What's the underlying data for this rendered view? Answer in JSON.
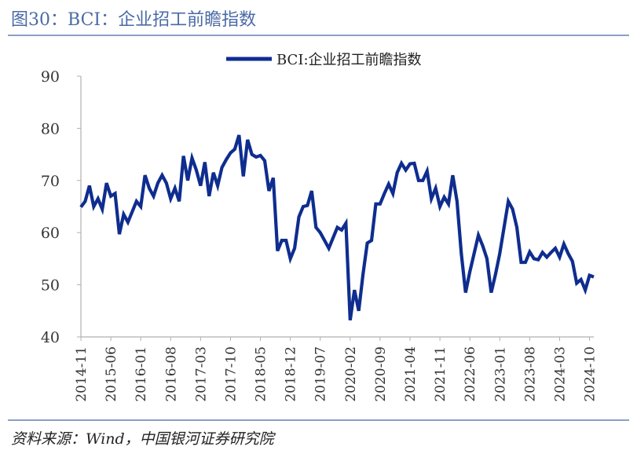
{
  "figure": {
    "title": "图30：BCI：企业招工前瞻指数",
    "source": "资料来源：Wind，中国银河证券研究院"
  },
  "colors": {
    "line": "#0f2d8f",
    "rule": "#8a9fc6",
    "title": "#4a6aa5",
    "axis": "#b0b0b0"
  },
  "chart_data": {
    "type": "line",
    "title": "",
    "xlabel": "",
    "ylabel": "",
    "ylim": [
      40,
      90
    ],
    "yticks": [
      40,
      50,
      60,
      70,
      80,
      90
    ],
    "grid": false,
    "legend_position": "top-center",
    "start_month": "2014-11",
    "x_tick_labels": [
      "2014-11",
      "2015-06",
      "2016-01",
      "2016-08",
      "2017-03",
      "2017-10",
      "2018-05",
      "2018-12",
      "2019-07",
      "2020-02",
      "2020-09",
      "2021-04",
      "2021-11",
      "2022-06",
      "2023-01",
      "2023-08",
      "2024-03",
      "2024-10"
    ],
    "series": [
      {
        "name": "BCI:企业招工前瞻指数",
        "values": [
          64.9,
          66.0,
          69.0,
          65.0,
          66.5,
          64.5,
          69.5,
          67.0,
          67.5,
          59.7,
          63.5,
          62.0,
          64.0,
          66.0,
          65.0,
          71.0,
          68.5,
          67.0,
          69.5,
          71.0,
          69.5,
          66.5,
          68.5,
          66.0,
          74.7,
          70.0,
          74.3,
          72.0,
          69.0,
          73.5,
          67.0,
          71.5,
          69.0,
          72.5,
          74.0,
          75.3,
          76.0,
          78.7,
          70.8,
          77.8,
          75.0,
          74.5,
          74.8,
          73.8,
          68.0,
          70.5,
          56.5,
          58.5,
          58.5,
          55.0,
          57.0,
          63.0,
          65.0,
          65.2,
          68.0,
          61.0,
          60.0,
          58.5,
          57.0,
          59.0,
          61.0,
          60.5,
          61.8,
          43.2,
          49.0,
          45.0,
          52.0,
          58.0,
          58.5,
          65.5,
          65.5,
          67.5,
          69.3,
          67.5,
          71.5,
          73.3,
          72.0,
          73.2,
          73.3,
          70.0,
          70.0,
          71.8,
          66.5,
          68.5,
          65.0,
          66.8,
          65.5,
          71.0,
          66.0,
          56.0,
          48.5,
          52.5,
          56.0,
          59.5,
          57.5,
          55.0,
          48.5,
          52.0,
          56.0,
          61.0,
          66.0,
          64.5,
          61.0,
          54.3,
          54.3,
          56.3,
          55.0,
          54.8,
          56.2,
          55.3,
          56.2,
          57.0,
          55.3,
          57.8,
          56.0,
          54.5,
          50.3,
          51.0,
          49.0,
          51.8,
          51.5
        ]
      }
    ]
  }
}
